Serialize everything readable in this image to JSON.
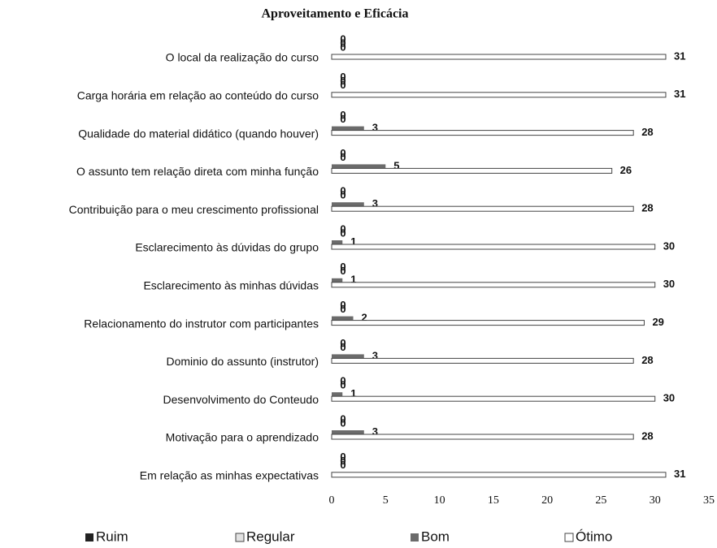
{
  "chart_data": {
    "type": "barh",
    "title": "Aproveitamento e Eficácia",
    "categories": [
      "O local da realização do curso",
      "Carga horária em relação ao conteúdo do curso",
      "Qualidade do material didático (quando houver)",
      "O assunto tem relação direta com minha função",
      "Contribuição para o meu crescimento profissional",
      "Esclarecimento às dúvidas do grupo",
      "Esclarecimento às minhas dúvidas",
      "Relacionamento do instrutor com participantes",
      "Dominio do assunto (instrutor)",
      "Desenvolvimento do Conteudo",
      "Motivação para o aprendizado",
      "Em relação as minhas expectativas"
    ],
    "series": [
      {
        "name": "Ruim",
        "color": "#222222",
        "values": [
          0,
          0,
          0,
          0,
          0,
          0,
          0,
          0,
          0,
          0,
          0,
          0
        ]
      },
      {
        "name": "Regular",
        "color": "#e2e2e2",
        "values": [
          0,
          0,
          0,
          0,
          0,
          0,
          0,
          0,
          0,
          0,
          0,
          0
        ]
      },
      {
        "name": "Bom",
        "color": "#6b6b6b",
        "values": [
          0,
          0,
          3,
          5,
          3,
          1,
          1,
          2,
          3,
          1,
          3,
          0
        ]
      },
      {
        "name": "Ótimo",
        "color": "#ffffff",
        "values": [
          31,
          31,
          28,
          26,
          28,
          30,
          30,
          29,
          28,
          30,
          28,
          31
        ]
      }
    ],
    "xlim": [
      0,
      35
    ],
    "xticks": [
      0,
      5,
      10,
      15,
      20,
      25,
      30,
      35
    ],
    "legend": "bottom"
  }
}
